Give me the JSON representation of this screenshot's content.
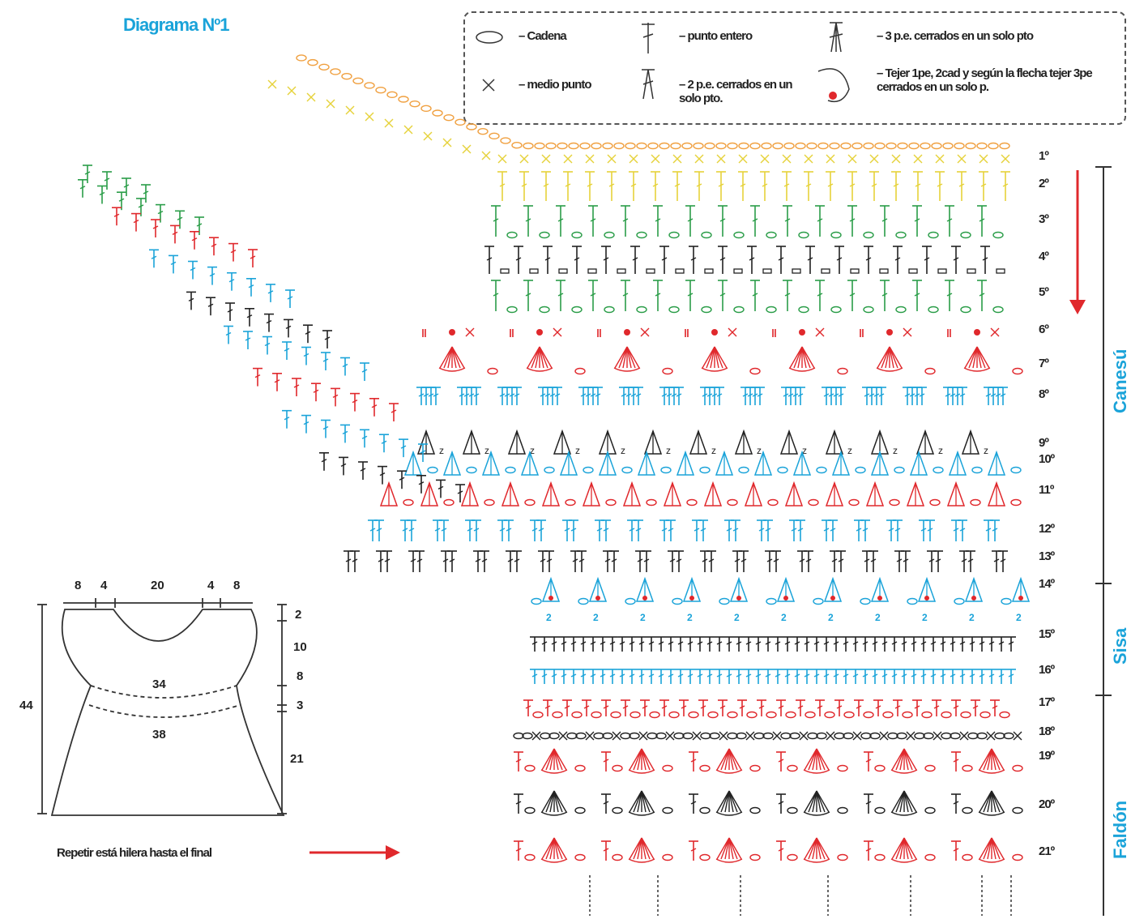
{
  "title": "Diagrama Nº1",
  "legend": {
    "chain": "– Cadena",
    "single_crochet": "– medio punto",
    "double_crochet": "– punto entero",
    "dc2tog": "– 2 p.e. cerrados en un solo pto.",
    "dc3tog": "– 3 p.e. cerrados en un solo pto",
    "special": "– Tejer 1pe, 2cad y según la flecha tejer 3pe cerrados en un solo p."
  },
  "rows": [
    "1º",
    "2º",
    "3º",
    "4º",
    "5º",
    "6º",
    "7º",
    "8º",
    "9º",
    "10º",
    "11º",
    "12º",
    "13º",
    "14º",
    "15º",
    "16º",
    "17º",
    "18º",
    "19º",
    "20º",
    "21º"
  ],
  "sections": {
    "yoke": "Canesú",
    "waist": "Sisa",
    "skirt": "Faldón"
  },
  "schematic": {
    "top_dims": [
      "8",
      "4",
      "20",
      "4",
      "8"
    ],
    "height_total": "44",
    "right_dims": [
      "2",
      "10",
      "8",
      "3",
      "21"
    ],
    "upper_width": "34",
    "lower_width": "38"
  },
  "footer": "Repetir está hilera hasta el final",
  "colors": {
    "blue": "#1aa3d9",
    "yellow": "#e6d23a",
    "orange": "#f0a040",
    "green": "#2a9d48",
    "black": "#222222",
    "red": "#e0282c"
  }
}
